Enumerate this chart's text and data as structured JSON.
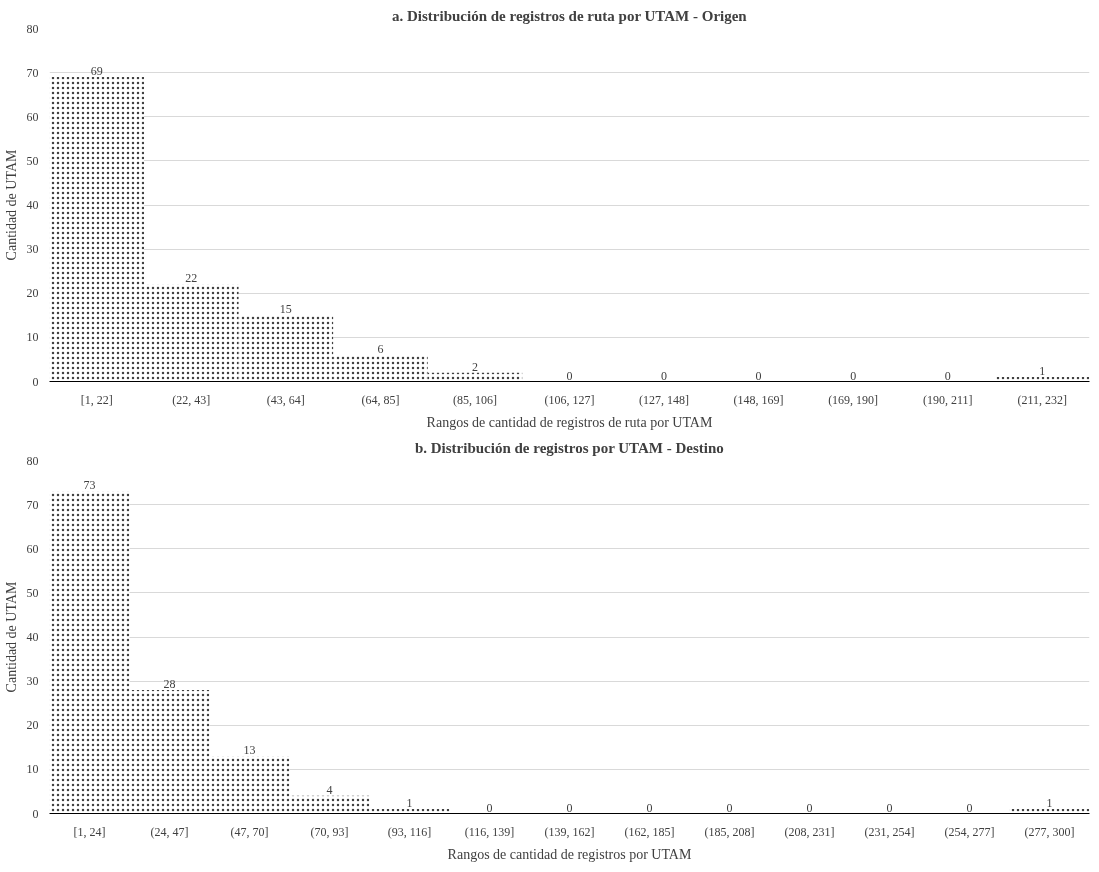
{
  "chart_data": [
    {
      "type": "bar",
      "title": "a. Distribución de registros de ruta por UTAM - Origen",
      "xlabel": "Rangos de cantidad de registros de ruta por UTAM",
      "ylabel": "Cantidad de UTAM",
      "categories": [
        "[1, 22]",
        "(22, 43]",
        "(43, 64]",
        "(64, 85]",
        "(85, 106]",
        "(106, 127]",
        "(127, 148]",
        "(148, 169]",
        "(169, 190]",
        "(190, 211]",
        "(211, 232]"
      ],
      "values": [
        69,
        22,
        15,
        6,
        2,
        0,
        0,
        0,
        0,
        0,
        1
      ],
      "color": "#404040",
      "ylim": [
        0,
        80
      ],
      "yticks": [
        0,
        10,
        20,
        30,
        40,
        50,
        60,
        70,
        80
      ],
      "grid": "y",
      "data_labels": true
    },
    {
      "type": "bar",
      "title": "b. Distribución de registros por UTAM - Destino",
      "xlabel": "Rangos de cantidad de registros por UTAM",
      "ylabel": "Cantidad de UTAM",
      "categories": [
        "[1, 24]",
        "(24, 47]",
        "(47, 70]",
        "(70, 93]",
        "(93, 116]",
        "(116, 139]",
        "(139, 162]",
        "(162, 185]",
        "(185, 208]",
        "(208, 231]",
        "(231, 254]",
        "(254, 277]",
        "(277, 300]"
      ],
      "values": [
        73,
        28,
        13,
        4,
        1,
        0,
        0,
        0,
        0,
        0,
        0,
        0,
        1
      ],
      "color": "#404040",
      "ylim": [
        0,
        80
      ],
      "yticks": [
        0,
        10,
        20,
        30,
        40,
        50,
        60,
        70,
        80
      ],
      "grid": "y",
      "data_labels": true
    }
  ]
}
